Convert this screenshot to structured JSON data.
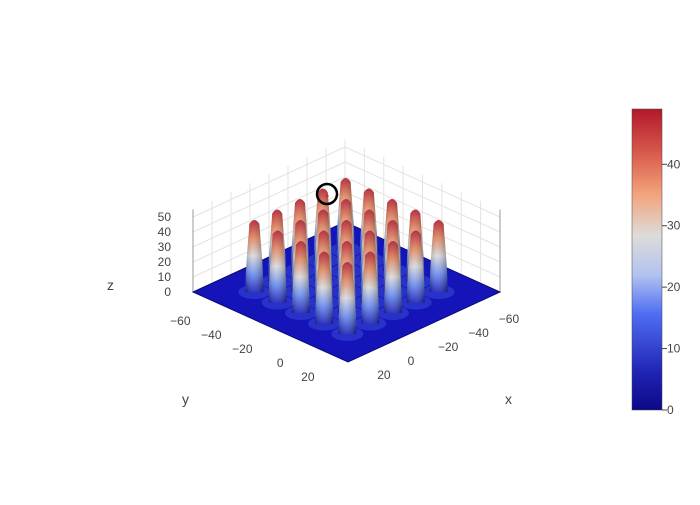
{
  "chart_data": {
    "type": "surface",
    "title": "",
    "xlabel": "x",
    "ylabel": "y",
    "zlabel": "z",
    "x_ticks": [
      -60,
      -40,
      -20,
      0,
      20
    ],
    "y_ticks": [
      -60,
      -40,
      -20,
      0,
      20
    ],
    "z_ticks": [
      0,
      10,
      20,
      30,
      40,
      50
    ],
    "xlim": [
      -70,
      30
    ],
    "ylim": [
      -70,
      30
    ],
    "zlim": [
      0,
      50
    ],
    "surface": {
      "description": "5x5 grid of gaussian peaks on flat base",
      "peak_centers_x": [
        -50,
        -35,
        -20,
        -5,
        10
      ],
      "peak_centers_y": [
        -50,
        -35,
        -20,
        -5,
        10
      ],
      "peak_height": 48,
      "base_height": 0
    },
    "colorbar": {
      "ticks": [
        0,
        10,
        20,
        30,
        40
      ],
      "range": [
        0,
        49
      ],
      "colorscale": [
        "#0d0887",
        "#1f22b3",
        "#4f6ef2",
        "#b3c3f0",
        "#dddcd9",
        "#f2a27a",
        "#d6574a",
        "#b2182b"
      ]
    },
    "grid": true
  }
}
